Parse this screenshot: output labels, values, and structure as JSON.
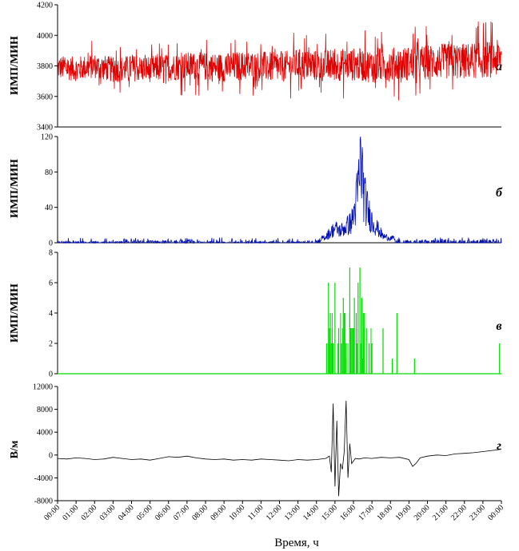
{
  "chart_data": [
    {
      "type": "line",
      "panel": "a",
      "panel_label": "а",
      "ylabel": "ИМП/МИН",
      "ylim": [
        3400,
        4200
      ],
      "yticks": [
        3400,
        3600,
        3800,
        4000,
        4200
      ],
      "color": "#e00000",
      "series": [
        {
          "x": [
            0,
            1,
            2,
            3,
            4,
            5,
            6,
            7,
            8,
            9,
            10,
            11,
            12,
            13,
            14,
            15,
            16,
            17,
            18,
            19,
            20,
            21,
            22,
            23,
            24
          ],
          "y": [
            3790,
            3780,
            3800,
            3775,
            3785,
            3780,
            3790,
            3800,
            3795,
            3790,
            3800,
            3795,
            3790,
            3810,
            3800,
            3805,
            3810,
            3800,
            3810,
            3815,
            3825,
            3830,
            3830,
            3840,
            3850
          ]
        }
      ],
      "noise_amplitude": 110
    },
    {
      "type": "line",
      "panel": "b",
      "panel_label": "б",
      "ylabel": "ИМП/МИН",
      "ylim": [
        0,
        120
      ],
      "yticks": [
        0,
        40,
        80,
        120
      ],
      "color": "#0010b0",
      "series": [
        {
          "x": [
            0,
            1,
            2,
            3,
            4,
            5,
            6,
            7,
            8,
            9,
            10,
            11,
            12,
            13,
            14,
            14.5,
            15,
            15.3,
            15.6,
            15.9,
            16.1,
            16.2,
            16.3,
            16.4,
            16.5,
            16.6,
            16.8,
            17,
            17.3,
            17.6,
            18,
            18.5,
            19,
            20,
            21,
            22,
            23,
            24
          ],
          "y": [
            1,
            1,
            1,
            1,
            2,
            2,
            2,
            2,
            1,
            1,
            1,
            1,
            1,
            1,
            2,
            8,
            18,
            15,
            20,
            26,
            45,
            60,
            78,
            104,
            80,
            55,
            38,
            28,
            18,
            8,
            6,
            4,
            2,
            2,
            3,
            2,
            3,
            4
          ]
        }
      ]
    },
    {
      "type": "line",
      "panel": "c",
      "panel_label": "в",
      "ylabel": "ИМП/МИН",
      "ylim": [
        0,
        8
      ],
      "yticks": [
        0,
        2,
        4,
        6,
        8
      ],
      "color": "#00dd00",
      "spikes": [
        {
          "x": 14.55,
          "y": 2
        },
        {
          "x": 14.65,
          "y": 6
        },
        {
          "x": 14.75,
          "y": 4
        },
        {
          "x": 14.85,
          "y": 3
        },
        {
          "x": 15.0,
          "y": 6
        },
        {
          "x": 15.2,
          "y": 3
        },
        {
          "x": 15.45,
          "y": 5
        },
        {
          "x": 15.6,
          "y": 2
        },
        {
          "x": 15.8,
          "y": 7
        },
        {
          "x": 15.95,
          "y": 3
        },
        {
          "x": 16.05,
          "y": 5
        },
        {
          "x": 16.15,
          "y": 4
        },
        {
          "x": 16.25,
          "y": 6
        },
        {
          "x": 16.35,
          "y": 7
        },
        {
          "x": 16.45,
          "y": 5
        },
        {
          "x": 16.55,
          "y": 4
        },
        {
          "x": 16.7,
          "y": 3
        },
        {
          "x": 16.85,
          "y": 2
        },
        {
          "x": 17.0,
          "y": 2
        },
        {
          "x": 17.6,
          "y": 3
        },
        {
          "x": 18.1,
          "y": 1
        },
        {
          "x": 18.35,
          "y": 4
        },
        {
          "x": 19.3,
          "y": 1
        },
        {
          "x": 23.9,
          "y": 2
        }
      ]
    },
    {
      "type": "line",
      "panel": "d",
      "panel_label": "г",
      "ylabel": "В/м",
      "ylim": [
        -8000,
        12000
      ],
      "yticks": [
        -8000,
        -4000,
        0,
        4000,
        8000,
        12000
      ],
      "color": "#000000",
      "series": [
        {
          "x": [
            0,
            0.5,
            1,
            1.5,
            2,
            2.5,
            3,
            3.5,
            4,
            4.5,
            5,
            5.5,
            6,
            6.5,
            7,
            7.5,
            8,
            8.5,
            9,
            9.5,
            10,
            10.5,
            11,
            11.5,
            12,
            12.5,
            13,
            13.5,
            14,
            14.5,
            14.7,
            14.8,
            14.9,
            15.0,
            15.1,
            15.2,
            15.3,
            15.4,
            15.5,
            15.6,
            15.7,
            15.8,
            15.9,
            16.1,
            16.3,
            16.6,
            17,
            17.5,
            18,
            18.5,
            19,
            19.2,
            19.4,
            19.6,
            20,
            20.5,
            21,
            21.5,
            22,
            22.5,
            23,
            23.5,
            24
          ],
          "y": [
            -600,
            -700,
            -500,
            -600,
            -800,
            -700,
            -400,
            -600,
            -800,
            -700,
            -900,
            -600,
            -300,
            -400,
            -200,
            -500,
            -700,
            -800,
            -700,
            -900,
            -800,
            -900,
            -700,
            -800,
            -900,
            -1000,
            -800,
            -900,
            -800,
            -600,
            -200,
            -3000,
            9000,
            -5500,
            6000,
            -7200,
            -1500,
            -2500,
            500,
            9500,
            -4000,
            2000,
            -1500,
            -600,
            -700,
            -500,
            -600,
            -400,
            -500,
            -400,
            -800,
            -2000,
            -1400,
            -500,
            -200,
            0,
            -100,
            200,
            300,
            400,
            600,
            800,
            1000
          ]
        }
      ]
    }
  ],
  "x_axis": {
    "label": "Время, ч",
    "ticks": [
      "00:00",
      "01:00",
      "02:00",
      "03:00",
      "04:00",
      "05:00",
      "06:00",
      "07:00",
      "08:00",
      "09:00",
      "10:00",
      "11:00",
      "12:00",
      "13:00",
      "14:00",
      "15:00",
      "16:00",
      "17:00",
      "18:00",
      "19:00",
      "20:00",
      "21:00",
      "22:00",
      "23:00",
      "00:00"
    ]
  }
}
